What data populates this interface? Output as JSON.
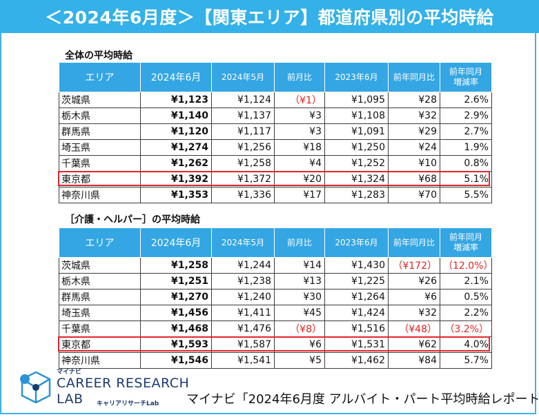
{
  "title": "＜2024年6月度＞【関東エリア】都道府県別の平均時給",
  "columns": [
    "エリア",
    "2024年6月",
    "2024年5月",
    "前月比",
    "2023年6月",
    "前年同月比",
    "前年同月",
    "増減率"
  ],
  "section1": {
    "label": "全体の平均時給",
    "rows": [
      {
        "pref": "茨城県",
        "jun24": "¥1,123",
        "may24": "¥1,124",
        "mom": "（¥1）",
        "jun23": "¥1,095",
        "yoy": "¥28",
        "rate": "2.6%"
      },
      {
        "pref": "栃木県",
        "jun24": "¥1,140",
        "may24": "¥1,137",
        "mom": "¥3",
        "jun23": "¥1,108",
        "yoy": "¥32",
        "rate": "2.9%"
      },
      {
        "pref": "群馬県",
        "jun24": "¥1,120",
        "may24": "¥1,117",
        "mom": "¥3",
        "jun23": "¥1,091",
        "yoy": "¥29",
        "rate": "2.7%"
      },
      {
        "pref": "埼玉県",
        "jun24": "¥1,274",
        "may24": "¥1,256",
        "mom": "¥18",
        "jun23": "¥1,250",
        "yoy": "¥24",
        "rate": "1.9%"
      },
      {
        "pref": "千葉県",
        "jun24": "¥1,262",
        "may24": "¥1,258",
        "mom": "¥4",
        "jun23": "¥1,252",
        "yoy": "¥10",
        "rate": "0.8%"
      },
      {
        "pref": "東京都",
        "jun24": "¥1,392",
        "may24": "¥1,372",
        "mom": "¥20",
        "jun23": "¥1,324",
        "yoy": "¥68",
        "rate": "5.1%"
      },
      {
        "pref": "神奈川県",
        "jun24": "¥1,353",
        "may24": "¥1,336",
        "mom": "¥17",
        "jun23": "¥1,283",
        "yoy": "¥70",
        "rate": "5.5%"
      }
    ]
  },
  "section2": {
    "label": "［介護・ヘルパー］の平均時給",
    "rows": [
      {
        "pref": "茨城県",
        "jun24": "¥1,258",
        "may24": "¥1,244",
        "mom": "¥14",
        "jun23": "¥1,430",
        "yoy": "（¥172）",
        "rate": "（12.0%）"
      },
      {
        "pref": "栃木県",
        "jun24": "¥1,251",
        "may24": "¥1,238",
        "mom": "¥13",
        "jun23": "¥1,225",
        "yoy": "¥26",
        "rate": "2.1%"
      },
      {
        "pref": "群馬県",
        "jun24": "¥1,270",
        "may24": "¥1,240",
        "mom": "¥30",
        "jun23": "¥1,264",
        "yoy": "¥6",
        "rate": "0.5%"
      },
      {
        "pref": "埼玉県",
        "jun24": "¥1,456",
        "may24": "¥1,411",
        "mom": "¥45",
        "jun23": "¥1,424",
        "yoy": "¥32",
        "rate": "2.2%"
      },
      {
        "pref": "千葉県",
        "jun24": "¥1,468",
        "may24": "¥1,476",
        "mom": "（¥8）",
        "jun23": "¥1,516",
        "yoy": "（¥48）",
        "rate": "（3.2%）"
      },
      {
        "pref": "東京都",
        "jun24": "¥1,593",
        "may24": "¥1,587",
        "mom": "¥6",
        "jun23": "¥1,531",
        "yoy": "¥62",
        "rate": "4.0%"
      },
      {
        "pref": "神奈川県",
        "jun24": "¥1,546",
        "may24": "¥1,541",
        "mom": "¥5",
        "jun23": "¥1,462",
        "yoy": "¥84",
        "rate": "5.7%"
      }
    ]
  },
  "logo": {
    "brand": "マイナビ",
    "name_line1": "CAREER RESEARCH",
    "name_line2": "LAB",
    "name_jp": "キャリアリサーチLab"
  },
  "source": "マイナビ「2024年6月度 アルバイト・パート平均時給レポート」",
  "colors": {
    "header": "#33b1e8",
    "highlight": "#e0242a",
    "negative": "#e02020"
  }
}
